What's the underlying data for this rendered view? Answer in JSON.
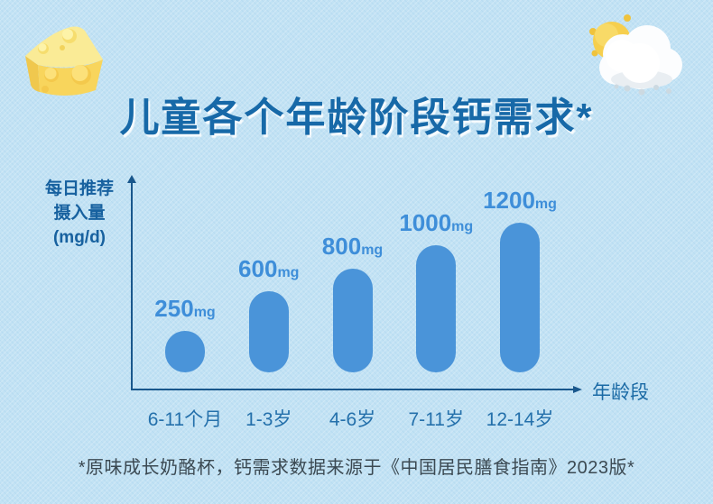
{
  "page": {
    "title": "儿童各个年龄阶段钙需求*",
    "footnote": "*原味成长奶酪杯，钙需求数据来源于《中国居民膳食指南》2023版*"
  },
  "chart_data": {
    "type": "bar",
    "title": "儿童各个年龄阶段钙需求*",
    "categories": [
      "6-11个月",
      "1-3岁",
      "4-6岁",
      "7-11岁",
      "12-14岁"
    ],
    "values": [
      250,
      600,
      800,
      1000,
      1200
    ],
    "unit": "mg",
    "value_labels": [
      "250mg",
      "600mg",
      "800mg",
      "1000mg",
      "1200mg"
    ],
    "xlabel": "年龄段",
    "ylabel": "每日推荐摄入量 (mg/d)",
    "ylabel_lines": [
      "每日推荐",
      "摄入量",
      "(mg/d)"
    ],
    "grid": false,
    "legend": false,
    "bar_shape": "rounded-pill",
    "colors": {
      "bar": "#4a94d9",
      "value_label": "#3e8ed9",
      "axis": "#19578c",
      "title": "#1769a8",
      "tick_label": "#2470ab",
      "background": "#c2e2f4",
      "footnote": "#3b4952"
    }
  }
}
